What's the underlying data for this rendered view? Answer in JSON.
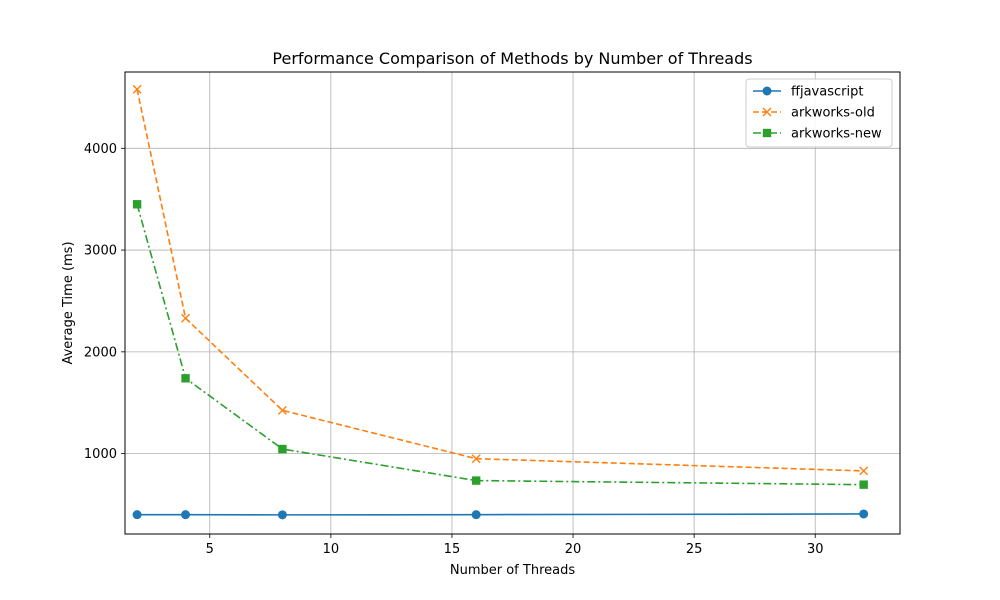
{
  "chart_data": {
    "type": "line",
    "title": "Performance Comparison of Methods by Number of Threads",
    "xlabel": "Number of Threads",
    "ylabel": "Average Time (ms)",
    "x": [
      2,
      4,
      8,
      16,
      32
    ],
    "xlim": [
      1.5,
      33.5
    ],
    "ylim": [
      210,
      4750
    ],
    "xticks": [
      5,
      10,
      15,
      20,
      25,
      30
    ],
    "yticks": [
      1000,
      2000,
      3000,
      4000
    ],
    "grid": true,
    "legend_position": "top-right",
    "series": [
      {
        "name": "ffjavascript",
        "values": [
          400,
          400,
          398,
          400,
          407
        ],
        "color": "#1f77b4",
        "linestyle": "solid",
        "marker": "circle"
      },
      {
        "name": "arkworks-old",
        "values": [
          4580,
          2330,
          1425,
          950,
          830
        ],
        "color": "#ff7f0e",
        "linestyle": "dashed",
        "marker": "x"
      },
      {
        "name": "arkworks-new",
        "values": [
          3450,
          1740,
          1045,
          735,
          695
        ],
        "color": "#2ca02c",
        "linestyle": "dashdot",
        "marker": "square"
      }
    ]
  }
}
